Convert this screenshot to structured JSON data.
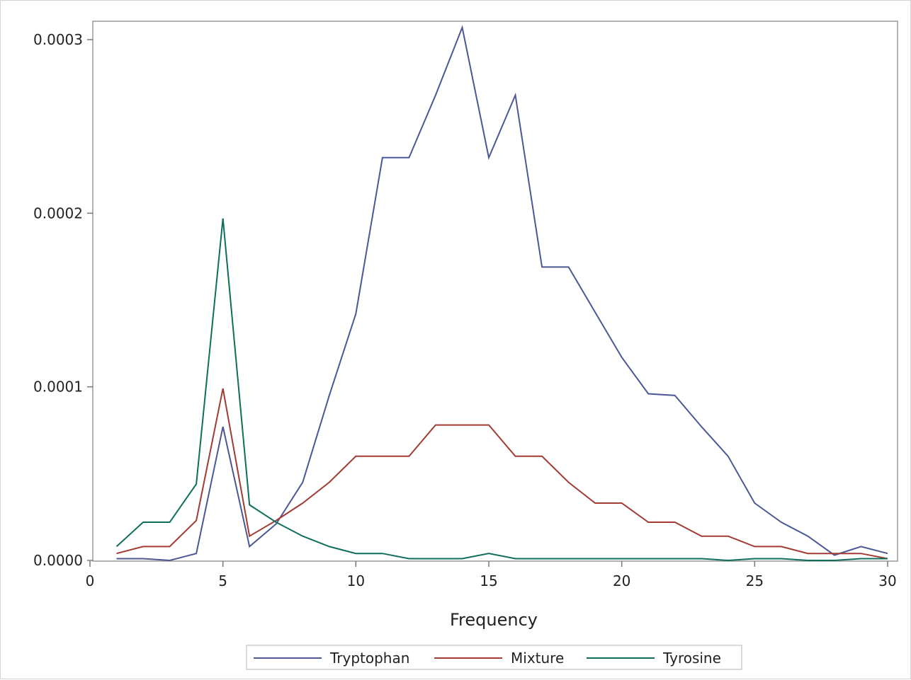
{
  "chart_data": {
    "type": "line",
    "title": "",
    "xlabel": "Frequency",
    "ylabel": "",
    "xlim": [
      0,
      30
    ],
    "ylim": [
      0,
      0.00031
    ],
    "xticks": [
      {
        "value": 0,
        "label": "0"
      },
      {
        "value": 5,
        "label": "5"
      },
      {
        "value": 10,
        "label": "10"
      },
      {
        "value": 15,
        "label": "15"
      },
      {
        "value": 20,
        "label": "20"
      },
      {
        "value": 25,
        "label": "25"
      },
      {
        "value": 30,
        "label": "30"
      }
    ],
    "yticks": [
      {
        "value": 0.0,
        "label": "0.0000"
      },
      {
        "value": 0.0001,
        "label": "0.0001"
      },
      {
        "value": 0.0002,
        "label": "0.0002"
      },
      {
        "value": 0.0003,
        "label": "0.0003"
      }
    ],
    "grid": false,
    "legend_position": "bottom",
    "x": [
      1,
      2,
      3,
      4,
      5,
      6,
      7,
      8,
      9,
      10,
      11,
      12,
      13,
      14,
      15,
      16,
      17,
      18,
      19,
      20,
      21,
      22,
      23,
      24,
      25,
      26,
      27,
      28,
      29,
      30
    ],
    "series": [
      {
        "name": "Tryptophan",
        "color": "#4b5895",
        "values": [
          1e-06,
          1e-06,
          0.0,
          4e-06,
          7.7e-05,
          8e-06,
          2.1e-05,
          4.5e-05,
          9.5e-05,
          0.000142,
          0.000232,
          0.000232,
          0.000268,
          0.000307,
          0.000232,
          0.000268,
          0.000169,
          0.000169,
          0.000143,
          0.000117,
          9.6e-05,
          9.5e-05,
          7.7e-05,
          6e-05,
          3.3e-05,
          2.2e-05,
          1.4e-05,
          3e-06,
          8e-06,
          4e-06
        ]
      },
      {
        "name": "Mixture",
        "color": "#a23b32",
        "values": [
          4e-06,
          8e-06,
          8e-06,
          2.3e-05,
          9.9e-05,
          1.4e-05,
          2.3e-05,
          3.3e-05,
          4.5e-05,
          6e-05,
          6e-05,
          6e-05,
          7.8e-05,
          7.8e-05,
          7.8e-05,
          6e-05,
          6e-05,
          4.5e-05,
          3.3e-05,
          3.3e-05,
          2.2e-05,
          2.2e-05,
          1.4e-05,
          1.4e-05,
          8e-06,
          8e-06,
          4e-06,
          4e-06,
          4e-06,
          1e-06
        ]
      },
      {
        "name": "Tyrosine",
        "color": "#0f6e5c",
        "values": [
          8e-06,
          2.2e-05,
          2.2e-05,
          4.4e-05,
          0.000197,
          3.2e-05,
          2.2e-05,
          1.4e-05,
          8e-06,
          4e-06,
          4e-06,
          1e-06,
          1e-06,
          1e-06,
          4e-06,
          1e-06,
          1e-06,
          1e-06,
          1e-06,
          1e-06,
          1e-06,
          1e-06,
          1e-06,
          0.0,
          1e-06,
          1e-06,
          0.0,
          0.0,
          1e-06,
          1e-06
        ]
      }
    ]
  }
}
